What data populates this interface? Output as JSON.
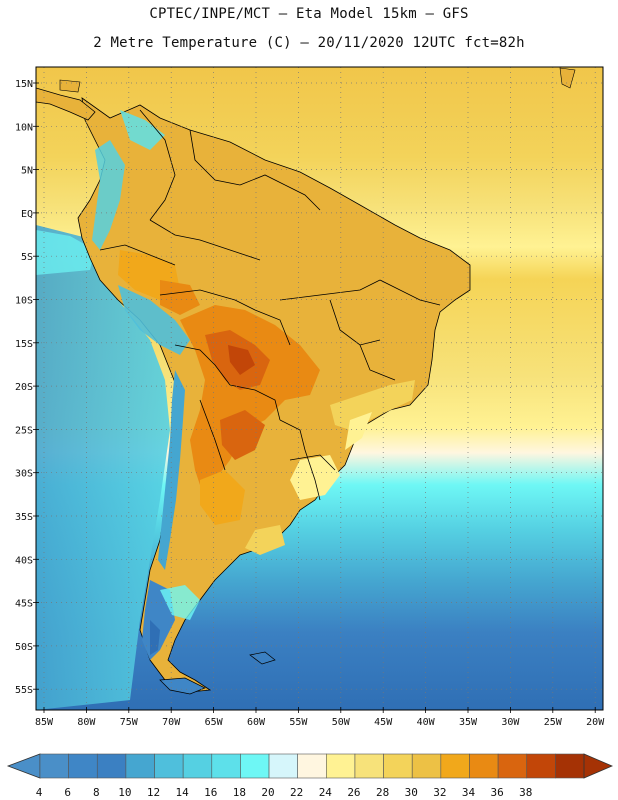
{
  "header": {
    "line1": "CPTEC/INPE/MCT –   Eta Model 15km – GFS",
    "line2": "2 Metre Temperature (C) – 20/11/2020 12UTC fct=82h"
  },
  "map": {
    "lat_labels": [
      "15N",
      "10N",
      "5N",
      "EQ",
      "5S",
      "10S",
      "15S",
      "20S",
      "25S",
      "30S",
      "35S",
      "40S",
      "45S",
      "50S",
      "55S"
    ],
    "lon_labels": [
      "85W",
      "80W",
      "75W",
      "70W",
      "65W",
      "60W",
      "55W",
      "50W",
      "45W",
      "40W",
      "35W",
      "30W",
      "25W",
      "20W"
    ],
    "grid": "on"
  },
  "colorbar": {
    "values": [
      "4",
      "6",
      "8",
      "10",
      "12",
      "14",
      "16",
      "18",
      "20",
      "22",
      "24",
      "26",
      "28",
      "30",
      "32",
      "34",
      "36",
      "38"
    ],
    "colors": [
      "#4a8fc8",
      "#3f86c6",
      "#3b80c2",
      "#45a6d0",
      "#4fbfdc",
      "#55d0e2",
      "#5de0ea",
      "#6ef7f5",
      "#d6f6fb",
      "#fff6e0",
      "#fff293",
      "#f7e27a",
      "#f3d35a",
      "#edc145",
      "#f1a81b",
      "#e98a13",
      "#d9650f",
      "#c24608",
      "#a53205"
    ],
    "left_arrow_color": "#4a8fc8",
    "right_arrow_color": "#a53205"
  }
}
